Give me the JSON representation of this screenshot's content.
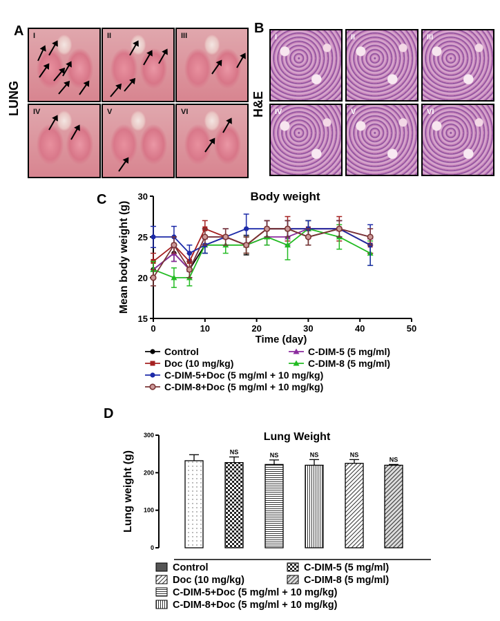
{
  "panels": {
    "a": {
      "letter": "A",
      "side_label": "LUNG",
      "photos": [
        "I",
        "II",
        "III",
        "IV",
        "V",
        "VI"
      ]
    },
    "b": {
      "letter": "B",
      "side_label": "H&E",
      "photos": [
        "I",
        "II",
        "III",
        "IV",
        "V",
        "VI"
      ]
    },
    "c": {
      "letter": "C"
    },
    "d": {
      "letter": "D"
    }
  },
  "chart_data": [
    {
      "type": "line",
      "title": "Body weight",
      "xlabel": "Time (day)",
      "ylabel": "Mean body weight (g)",
      "xlim": [
        0,
        50
      ],
      "ylim": [
        15,
        30
      ],
      "xticks": [
        0,
        10,
        20,
        30,
        40,
        50
      ],
      "yticks": [
        15,
        20,
        25,
        30
      ],
      "x": [
        0,
        4,
        7,
        10,
        14,
        18,
        22,
        26,
        30,
        36,
        42
      ],
      "series": [
        {
          "name": "Control",
          "color": "#000000",
          "marker": "circle",
          "values": [
            21,
            23,
            21,
            24,
            25,
            24,
            26,
            26,
            25,
            26,
            24
          ],
          "errors": [
            1,
            1,
            1,
            1,
            1,
            1.2,
            1,
            1,
            1,
            1,
            1
          ]
        },
        {
          "name": "C-DIM-5 (5 mg/ml)",
          "color": "#8b2c9e",
          "marker": "triangle",
          "values": [
            21,
            23,
            21,
            25,
            25,
            24,
            25,
            25,
            26,
            26,
            25
          ],
          "errors": [
            1,
            1,
            1,
            1,
            1,
            1,
            1,
            1,
            1,
            1,
            1
          ]
        },
        {
          "name": "Doc (10 mg/kg)",
          "color": "#a52020",
          "marker": "square",
          "values": [
            22,
            24,
            22,
            26,
            25,
            24,
            26,
            26,
            26,
            26,
            24
          ],
          "errors": [
            1,
            1,
            1,
            1,
            1,
            1,
            1,
            1.5,
            1,
            1.5,
            1
          ]
        },
        {
          "name": "C-DIM-8 (5 mg/ml)",
          "color": "#22bb22",
          "marker": "triangle",
          "values": [
            21,
            20,
            20,
            24,
            24,
            24,
            25,
            24,
            26,
            25,
            23
          ],
          "errors": [
            1,
            1.2,
            1,
            1,
            1,
            1,
            1,
            1.8,
            1,
            1.5,
            1.5
          ]
        },
        {
          "name": "C-DIM-5+Doc (5 mg/ml + 10 mg/kg)",
          "color": "#1c2aa8",
          "marker": "circle",
          "values": [
            25,
            25,
            23,
            24,
            25,
            26,
            26,
            26,
            26,
            26,
            24
          ],
          "errors": [
            1.3,
            1.3,
            1,
            1,
            1,
            1.8,
            1,
            1,
            1,
            1,
            2.5
          ]
        },
        {
          "name": "C-DIM-8+Doc (5 mg/ml + 10 mg/kg)",
          "color": "#7a3535",
          "marker": "circle-open",
          "values": [
            20,
            24,
            21,
            25,
            25,
            24,
            26,
            26,
            25,
            26,
            25
          ],
          "errors": [
            1,
            1,
            1,
            1,
            1,
            1,
            1,
            1,
            1,
            1,
            1
          ]
        }
      ],
      "legend": [
        "Control",
        "C-DIM-5 (5 mg/ml)",
        "Doc (10 mg/kg)",
        "C-DIM-8 (5 mg/ml)",
        "C-DIM-5+Doc (5 mg/ml + 10 mg/kg)",
        "C-DIM-8+Doc (5 mg/ml + 10 mg/kg)"
      ]
    },
    {
      "type": "bar",
      "title": "Lung Weight",
      "xlabel": "",
      "ylabel": "Lung weight (g)",
      "ylim": [
        0,
        300
      ],
      "yticks": [
        0,
        100,
        200,
        300
      ],
      "categories": [
        "Control",
        "Doc (10 mg/kg)",
        "C-DIM-5 (5 mg/ml)",
        "C-DIM-8 (5 mg/ml)",
        "C-DIM-5+Doc (5 mg/ml + 10 mg/kg)",
        "C-DIM-8+Doc (5 mg/ml + 10 mg/kg)"
      ],
      "values": [
        232,
        227,
        222,
        220,
        225,
        220
      ],
      "errors": [
        16,
        15,
        12,
        15,
        10,
        2
      ],
      "annotations": [
        "",
        "NS",
        "NS",
        "NS",
        "NS",
        "NS"
      ],
      "legend": [
        "Control",
        "C-DIM-5 (5 mg/ml)",
        "Doc (10 mg/kg)",
        "C-DIM-8 (5 mg/ml)",
        "C-DIM-5+Doc (5 mg/ml + 10 mg/kg)",
        "C-DIM-8+Doc (5 mg/ml + 10 mg/kg)"
      ]
    }
  ]
}
